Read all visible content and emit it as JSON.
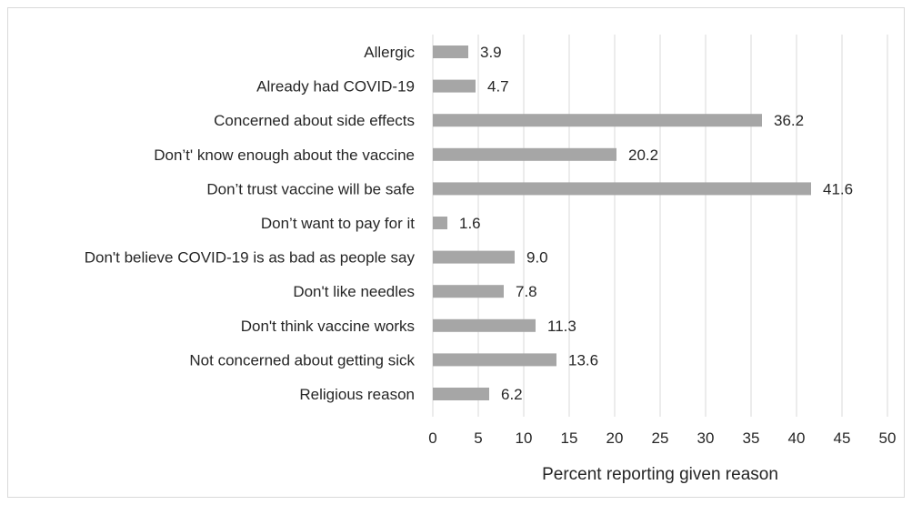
{
  "chart_data": {
    "type": "bar",
    "orientation": "horizontal",
    "title": "",
    "xlabel": "Percent reporting given reason",
    "ylabel": "",
    "xlim": [
      0,
      50
    ],
    "xticks": [
      0,
      5,
      10,
      15,
      20,
      25,
      30,
      35,
      40,
      45,
      50
    ],
    "grid": "vertical",
    "legend": "none",
    "bar_color": "#a6a6a6",
    "categories": [
      "Allergic",
      "Already had COVID-19",
      "Concerned about side effects",
      "Don’t' know enough about the vaccine",
      "Don’t trust vaccine will be safe",
      "Don’t want to pay for it",
      "Don't believe COVID-19 is as bad as people say",
      "Don't like needles",
      "Don't think vaccine works",
      "Not concerned about getting sick",
      "Religious reason"
    ],
    "values": [
      3.9,
      4.7,
      36.2,
      20.2,
      41.6,
      1.6,
      9.0,
      7.8,
      11.3,
      13.6,
      6.2
    ],
    "value_labels": [
      "3.9",
      "4.7",
      "36.2",
      "20.2",
      "41.6",
      "1.6",
      "9.0",
      "7.8",
      "11.3",
      "13.6",
      "6.2"
    ]
  }
}
